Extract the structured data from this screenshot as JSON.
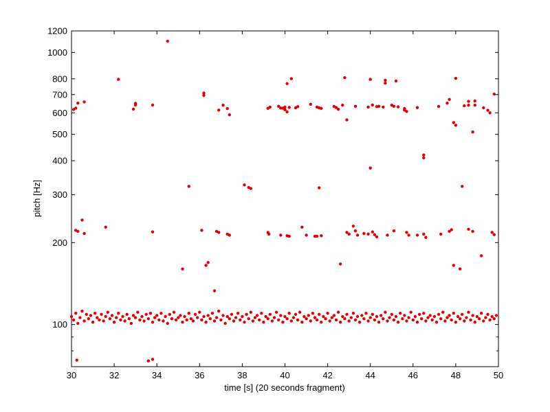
{
  "chart_data": {
    "type": "scatter",
    "title": "",
    "xlabel": "time [s] (20 seconds fragment)",
    "ylabel": "pitch [Hz]",
    "xlim": [
      30,
      50
    ],
    "ylim": [
      70,
      1200
    ],
    "yscale": "log",
    "grid": false,
    "x_ticks": [
      30,
      32,
      34,
      36,
      38,
      40,
      42,
      44,
      46,
      48,
      50
    ],
    "x_tick_labels": [
      "30",
      "32",
      "34",
      "36",
      "38",
      "40",
      "42",
      "44",
      "46",
      "48",
      "50"
    ],
    "y_ticks": [
      100,
      200,
      300,
      400,
      500,
      600,
      700,
      800,
      1000,
      1200
    ],
    "y_tick_labels": [
      "100",
      "200",
      "300",
      "400",
      "500",
      "600",
      "700",
      "800",
      "1000",
      "1200"
    ],
    "marker_color": "#e00000",
    "points": [
      [
        30.25,
        74
      ],
      [
        33.6,
        73.5
      ],
      [
        33.8,
        74.5
      ],
      [
        30.2,
        222
      ],
      [
        30.3,
        220
      ],
      [
        30.5,
        242
      ],
      [
        30.6,
        216
      ],
      [
        31.6,
        228
      ],
      [
        33.8,
        219
      ],
      [
        35.2,
        160
      ],
      [
        35.5,
        322
      ],
      [
        36.1,
        222
      ],
      [
        36.3,
        165
      ],
      [
        36.4,
        169
      ],
      [
        36.7,
        133
      ],
      [
        36.8,
        220
      ],
      [
        36.9,
        218
      ],
      [
        37.3,
        215
      ],
      [
        37.4,
        213
      ],
      [
        38.1,
        326
      ],
      [
        38.3,
        319
      ],
      [
        38.4,
        316
      ],
      [
        39.2,
        218
      ],
      [
        39.25,
        215
      ],
      [
        39.8,
        213
      ],
      [
        40.1,
        212
      ],
      [
        40.2,
        211
      ],
      [
        40.8,
        228
      ],
      [
        41.0,
        213
      ],
      [
        41.4,
        211
      ],
      [
        41.5,
        211
      ],
      [
        41.6,
        318
      ],
      [
        41.7,
        212
      ],
      [
        42.6,
        167
      ],
      [
        42.9,
        218
      ],
      [
        43.0,
        215
      ],
      [
        43.2,
        230
      ],
      [
        43.3,
        221
      ],
      [
        43.4,
        213
      ],
      [
        43.7,
        216
      ],
      [
        43.9,
        215
      ],
      [
        44.1,
        219
      ],
      [
        44.2,
        214
      ],
      [
        44.3,
        210
      ],
      [
        44.8,
        213
      ],
      [
        45.1,
        221
      ],
      [
        45.7,
        218
      ],
      [
        45.8,
        213
      ],
      [
        46.2,
        213
      ],
      [
        46.5,
        215
      ],
      [
        46.6,
        209
      ],
      [
        47.3,
        215
      ],
      [
        47.7,
        220
      ],
      [
        47.8,
        223
      ],
      [
        47.9,
        165
      ],
      [
        48.2,
        160
      ],
      [
        48.3,
        322
      ],
      [
        48.6,
        224
      ],
      [
        48.8,
        220
      ],
      [
        49.2,
        179
      ],
      [
        49.7,
        218
      ],
      [
        49.8,
        214
      ],
      [
        30.1,
        617
      ],
      [
        30.2,
        624
      ],
      [
        30.3,
        651
      ],
      [
        30.6,
        658
      ],
      [
        32.2,
        796
      ],
      [
        32.9,
        619
      ],
      [
        33.0,
        641
      ],
      [
        33.0,
        650
      ],
      [
        33.8,
        641
      ],
      [
        34.5,
        1100
      ],
      [
        36.2,
        709
      ],
      [
        36.2,
        695
      ],
      [
        36.9,
        614
      ],
      [
        37.1,
        640
      ],
      [
        37.3,
        622
      ],
      [
        37.4,
        590
      ],
      [
        39.2,
        623
      ],
      [
        39.3,
        630
      ],
      [
        39.7,
        634
      ],
      [
        39.8,
        625
      ],
      [
        39.9,
        624
      ],
      [
        40.0,
        630
      ],
      [
        40.0,
        616
      ],
      [
        40.1,
        605
      ],
      [
        40.1,
        768
      ],
      [
        40.2,
        628
      ],
      [
        40.3,
        801
      ],
      [
        40.5,
        626
      ],
      [
        40.6,
        632
      ],
      [
        41.2,
        645
      ],
      [
        41.5,
        630
      ],
      [
        41.6,
        626
      ],
      [
        41.7,
        623
      ],
      [
        42.3,
        633
      ],
      [
        42.4,
        627
      ],
      [
        42.5,
        618
      ],
      [
        42.7,
        640
      ],
      [
        42.8,
        808
      ],
      [
        42.9,
        565
      ],
      [
        43.3,
        634
      ],
      [
        43.9,
        630
      ],
      [
        44.0,
        376
      ],
      [
        44.0,
        796
      ],
      [
        44.1,
        641
      ],
      [
        44.3,
        632
      ],
      [
        44.4,
        634
      ],
      [
        44.6,
        630
      ],
      [
        44.7,
        790
      ],
      [
        44.7,
        771
      ],
      [
        45.0,
        640
      ],
      [
        45.1,
        634
      ],
      [
        45.2,
        785
      ],
      [
        45.3,
        631
      ],
      [
        45.6,
        622
      ],
      [
        45.6,
        614
      ],
      [
        45.7,
        607
      ],
      [
        46.2,
        627
      ],
      [
        46.5,
        410
      ],
      [
        46.5,
        420
      ],
      [
        47.2,
        633
      ],
      [
        47.6,
        651
      ],
      [
        47.7,
        672
      ],
      [
        47.9,
        552
      ],
      [
        48.0,
        803
      ],
      [
        48.0,
        540
      ],
      [
        48.4,
        637
      ],
      [
        48.6,
        661
      ],
      [
        48.6,
        640
      ],
      [
        48.8,
        510
      ],
      [
        48.9,
        663
      ],
      [
        48.9,
        640
      ],
      [
        49.3,
        626
      ],
      [
        49.5,
        613
      ],
      [
        49.6,
        600
      ],
      [
        49.8,
        703
      ]
    ],
    "band_low": [
      [
        30.0,
        107
      ],
      [
        30.1,
        104
      ],
      [
        30.2,
        110
      ],
      [
        30.3,
        101
      ],
      [
        30.4,
        106
      ],
      [
        30.5,
        112
      ],
      [
        30.6,
        103
      ],
      [
        30.7,
        109
      ],
      [
        30.8,
        105
      ],
      [
        30.9,
        108
      ],
      [
        31.0,
        102
      ],
      [
        31.1,
        110
      ],
      [
        31.2,
        106
      ],
      [
        31.3,
        104
      ],
      [
        31.4,
        109
      ],
      [
        31.5,
        103
      ],
      [
        31.6,
        107
      ],
      [
        31.7,
        111
      ],
      [
        31.8,
        105
      ],
      [
        31.9,
        108
      ],
      [
        32.0,
        102
      ],
      [
        32.1,
        106
      ],
      [
        32.2,
        110
      ],
      [
        32.3,
        104
      ],
      [
        32.4,
        107
      ],
      [
        32.5,
        103
      ],
      [
        32.6,
        109
      ],
      [
        32.7,
        105
      ],
      [
        32.8,
        101
      ],
      [
        32.9,
        108
      ],
      [
        33.0,
        106
      ],
      [
        33.1,
        111
      ],
      [
        33.2,
        104
      ],
      [
        33.3,
        107
      ],
      [
        33.4,
        103
      ],
      [
        33.5,
        109
      ],
      [
        33.6,
        105
      ],
      [
        33.7,
        110
      ],
      [
        33.8,
        102
      ],
      [
        33.9,
        106
      ],
      [
        34.0,
        108
      ],
      [
        34.1,
        104
      ],
      [
        34.2,
        110
      ],
      [
        34.3,
        103
      ],
      [
        34.4,
        107
      ],
      [
        34.5,
        101
      ],
      [
        34.6,
        109
      ],
      [
        34.7,
        105
      ],
      [
        34.8,
        111
      ],
      [
        34.9,
        104
      ],
      [
        35.0,
        106
      ],
      [
        35.1,
        108
      ],
      [
        35.2,
        102
      ],
      [
        35.3,
        107
      ],
      [
        35.4,
        104
      ],
      [
        35.5,
        110
      ],
      [
        35.6,
        105
      ],
      [
        35.7,
        103
      ],
      [
        35.8,
        109
      ],
      [
        35.9,
        106
      ],
      [
        36.0,
        111
      ],
      [
        36.1,
        104
      ],
      [
        36.2,
        107
      ],
      [
        36.3,
        102
      ],
      [
        36.4,
        108
      ],
      [
        36.5,
        105
      ],
      [
        36.6,
        110
      ],
      [
        36.7,
        103
      ],
      [
        36.8,
        106
      ],
      [
        36.9,
        112
      ],
      [
        37.0,
        104
      ],
      [
        37.1,
        108
      ],
      [
        37.2,
        101
      ],
      [
        37.3,
        107
      ],
      [
        37.4,
        105
      ],
      [
        37.5,
        109
      ],
      [
        37.6,
        103
      ],
      [
        37.7,
        106
      ],
      [
        37.8,
        110
      ],
      [
        37.9,
        104
      ],
      [
        38.0,
        107
      ],
      [
        38.1,
        102
      ],
      [
        38.2,
        109
      ],
      [
        38.3,
        105
      ],
      [
        38.4,
        111
      ],
      [
        38.5,
        103
      ],
      [
        38.6,
        106
      ],
      [
        38.7,
        108
      ],
      [
        38.8,
        104
      ],
      [
        38.9,
        110
      ],
      [
        39.0,
        102
      ],
      [
        39.1,
        107
      ],
      [
        39.2,
        105
      ],
      [
        39.3,
        109
      ],
      [
        39.4,
        103
      ],
      [
        39.5,
        106
      ],
      [
        39.6,
        111
      ],
      [
        39.7,
        104
      ],
      [
        39.8,
        108
      ],
      [
        39.9,
        102
      ],
      [
        40.0,
        107
      ],
      [
        40.1,
        105
      ],
      [
        40.2,
        110
      ],
      [
        40.3,
        103
      ],
      [
        40.4,
        106
      ],
      [
        40.5,
        109
      ],
      [
        40.6,
        104
      ],
      [
        40.7,
        111
      ],
      [
        40.8,
        102
      ],
      [
        40.9,
        107
      ],
      [
        41.0,
        105
      ],
      [
        41.1,
        108
      ],
      [
        41.2,
        103
      ],
      [
        41.3,
        110
      ],
      [
        41.4,
        106
      ],
      [
        41.5,
        104
      ],
      [
        41.6,
        109
      ],
      [
        41.7,
        102
      ],
      [
        41.8,
        107
      ],
      [
        41.9,
        105
      ],
      [
        42.0,
        110
      ],
      [
        42.1,
        103
      ],
      [
        42.2,
        106
      ],
      [
        42.3,
        108
      ],
      [
        42.4,
        104
      ],
      [
        42.5,
        111
      ],
      [
        42.6,
        102
      ],
      [
        42.7,
        107
      ],
      [
        42.8,
        105
      ],
      [
        42.9,
        109
      ],
      [
        43.0,
        103
      ],
      [
        43.1,
        106
      ],
      [
        43.2,
        110
      ],
      [
        43.3,
        104
      ],
      [
        43.4,
        107
      ],
      [
        43.5,
        102
      ],
      [
        43.6,
        108
      ],
      [
        43.7,
        105
      ],
      [
        43.8,
        110
      ],
      [
        43.9,
        103
      ],
      [
        44.0,
        106
      ],
      [
        44.1,
        109
      ],
      [
        44.2,
        104
      ],
      [
        44.3,
        107
      ],
      [
        44.4,
        102
      ],
      [
        44.5,
        108
      ],
      [
        44.6,
        105
      ],
      [
        44.7,
        111
      ],
      [
        44.8,
        103
      ],
      [
        44.9,
        106
      ],
      [
        45.0,
        109
      ],
      [
        45.1,
        104
      ],
      [
        45.2,
        107
      ],
      [
        45.3,
        102
      ],
      [
        45.4,
        110
      ],
      [
        45.5,
        105
      ],
      [
        45.6,
        108
      ],
      [
        45.7,
        103
      ],
      [
        45.8,
        106
      ],
      [
        45.9,
        111
      ],
      [
        46.0,
        104
      ],
      [
        46.1,
        107
      ],
      [
        46.2,
        102
      ],
      [
        46.3,
        109
      ],
      [
        46.4,
        105
      ],
      [
        46.5,
        110
      ],
      [
        46.6,
        103
      ],
      [
        46.7,
        106
      ],
      [
        46.8,
        108
      ],
      [
        46.9,
        104
      ],
      [
        47.0,
        107
      ],
      [
        47.1,
        102
      ],
      [
        47.2,
        109
      ],
      [
        47.3,
        105
      ],
      [
        47.4,
        111
      ],
      [
        47.5,
        103
      ],
      [
        47.6,
        106
      ],
      [
        47.7,
        108
      ],
      [
        47.8,
        104
      ],
      [
        47.9,
        110
      ],
      [
        48.0,
        102
      ],
      [
        48.1,
        107
      ],
      [
        48.2,
        105
      ],
      [
        48.3,
        109
      ],
      [
        48.4,
        103
      ],
      [
        48.5,
        106
      ],
      [
        48.6,
        111
      ],
      [
        48.7,
        104
      ],
      [
        48.8,
        108
      ],
      [
        48.9,
        102
      ],
      [
        49.0,
        107
      ],
      [
        49.1,
        105
      ],
      [
        49.2,
        110
      ],
      [
        49.3,
        103
      ],
      [
        49.4,
        106
      ],
      [
        49.5,
        109
      ],
      [
        49.6,
        104
      ],
      [
        49.7,
        107
      ],
      [
        49.8,
        105
      ],
      [
        49.9,
        108
      ]
    ]
  }
}
